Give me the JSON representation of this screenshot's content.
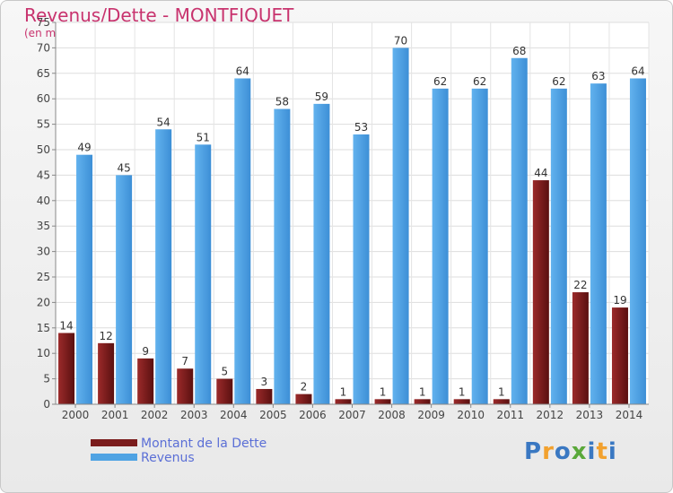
{
  "title": "Revenus/Dette - MONTFIQUET",
  "subtitle": "(en milliers d'€)",
  "logo": "Proxiti",
  "colors": {
    "dette": "#7a1c1c",
    "revenus": "#4fa3e3",
    "title": "#c8336e",
    "legend_text": "#5b6fd6"
  },
  "chart_data": {
    "type": "bar",
    "title": "Revenus/Dette - MONTFIQUET",
    "subtitle": "(en milliers d'€)",
    "categories": [
      "2000",
      "2001",
      "2002",
      "2003",
      "2004",
      "2005",
      "2006",
      "2007",
      "2008",
      "2009",
      "2010",
      "2011",
      "2012",
      "2013",
      "2014"
    ],
    "series": [
      {
        "name": "Montant de la Dette",
        "values": [
          14,
          12,
          9,
          7,
          5,
          3,
          2,
          1,
          1,
          1,
          1,
          1,
          44,
          22,
          19
        ]
      },
      {
        "name": "Revenus",
        "values": [
          49,
          45,
          54,
          51,
          64,
          58,
          59,
          53,
          70,
          62,
          62,
          68,
          62,
          63,
          64
        ]
      }
    ],
    "ylim": [
      0,
      75
    ],
    "yticks": [
      0,
      5,
      10,
      15,
      20,
      25,
      30,
      35,
      40,
      45,
      50,
      55,
      60,
      65,
      70,
      75
    ],
    "grid": true,
    "legend": "bottom-left"
  }
}
